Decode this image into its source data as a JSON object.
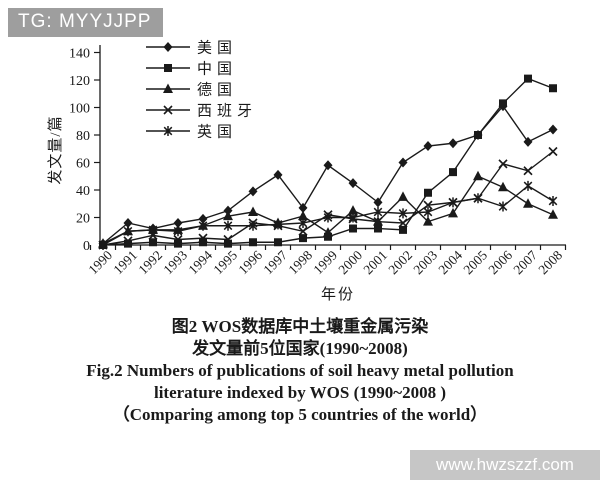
{
  "watermarks": {
    "top": "TG: MYYJJPP",
    "bottom": "www.hwzszzf.com"
  },
  "colors": {
    "ink": "#1a1a1a",
    "watermark_top_bg": "#9e9e9e",
    "watermark_bottom_bg": "#c6c6c6",
    "watermark_text": "#ffffff"
  },
  "caption": {
    "zh_line1": "图2  WOS数据库中土壤重金属污染",
    "zh_line2": "发文量前5位国家(1990~2008)",
    "en_line1": "Fig.2  Numbers of publications of soil heavy metal pollution",
    "en_line2": "literature indexed by WOS (1990~2008 )",
    "en_line3": "（Comparing among top 5 countries of the world）"
  },
  "chart_data": {
    "type": "line",
    "title": "",
    "xlabel": "年份",
    "ylabel": "发文量/篇",
    "ylim": [
      0,
      140
    ],
    "ytick_step": 20,
    "grid": false,
    "legend_position": "top-left",
    "categories": [
      "1990",
      "1991",
      "1992",
      "1993",
      "1994",
      "1995",
      "1996",
      "1997",
      "1998",
      "1999",
      "2000",
      "2001",
      "2002",
      "2003",
      "2004",
      "2005",
      "2006",
      "2007",
      "2008"
    ],
    "series": [
      {
        "name": "美国",
        "marker": "diamond",
        "values": [
          1,
          16,
          12,
          16,
          19,
          25,
          39,
          51,
          27,
          58,
          45,
          31,
          60,
          72,
          74,
          80,
          101,
          75,
          84
        ]
      },
      {
        "name": "中国",
        "marker": "square",
        "values": [
          0,
          1,
          2,
          1,
          2,
          1,
          2,
          2,
          5,
          6,
          12,
          12,
          11,
          38,
          53,
          80,
          103,
          121,
          114
        ]
      },
      {
        "name": "德国",
        "marker": "triangle",
        "values": [
          1,
          10,
          11,
          11,
          14,
          21,
          24,
          16,
          21,
          9,
          25,
          17,
          35,
          17,
          23,
          50,
          42,
          30,
          22
        ]
      },
      {
        "name": "西班牙",
        "marker": "x",
        "values": [
          0,
          3,
          7,
          4,
          5,
          4,
          16,
          14,
          10,
          22,
          19,
          17,
          16,
          29,
          31,
          34,
          59,
          54,
          68
        ]
      },
      {
        "name": "英国",
        "marker": "asterisk",
        "values": [
          0,
          10,
          11,
          10,
          14,
          14,
          14,
          15,
          16,
          20,
          20,
          24,
          23,
          24,
          31,
          34,
          28,
          43,
          32
        ]
      }
    ]
  }
}
